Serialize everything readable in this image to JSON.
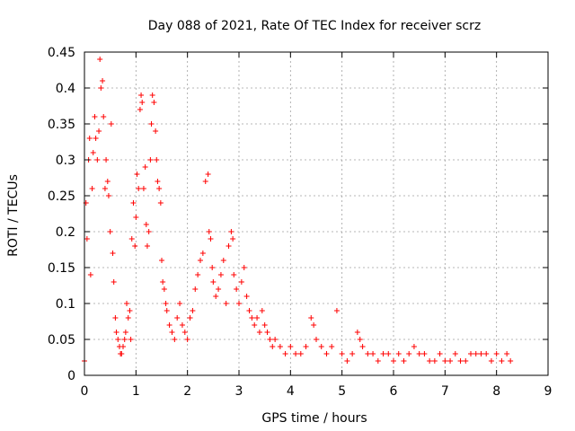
{
  "chart_data": {
    "type": "scatter",
    "title": "Day 088 of 2021, Rate Of TEC Index for receiver scrz",
    "xlabel": "GPS time / hours",
    "ylabel": "ROTI / TECUs",
    "xlim": [
      0,
      9
    ],
    "ylim": [
      0,
      0.45
    ],
    "xticks": [
      "0",
      "1",
      "2",
      "3",
      "4",
      "5",
      "6",
      "7",
      "8",
      "9"
    ],
    "yticks": [
      "0",
      "0.05",
      "0.1",
      "0.15",
      "0.2",
      "0.25",
      "0.3",
      "0.35",
      "0.4",
      "0.45"
    ],
    "grid": true,
    "marker": "+",
    "color": "#ff0000",
    "series": [
      {
        "name": "ROTI",
        "x": [
          0.0,
          0.03,
          0.05,
          0.08,
          0.1,
          0.12,
          0.15,
          0.17,
          0.2,
          0.22,
          0.25,
          0.28,
          0.3,
          0.32,
          0.35,
          0.37,
          0.4,
          0.42,
          0.45,
          0.47,
          0.5,
          0.52,
          0.55,
          0.57,
          0.6,
          0.62,
          0.65,
          0.68,
          0.7,
          0.72,
          0.75,
          0.78,
          0.8,
          0.82,
          0.85,
          0.88,
          0.9,
          0.92,
          0.95,
          0.98,
          1.0,
          1.02,
          1.05,
          1.08,
          1.1,
          1.12,
          1.15,
          1.18,
          1.2,
          1.22,
          1.25,
          1.28,
          1.3,
          1.32,
          1.35,
          1.38,
          1.4,
          1.42,
          1.45,
          1.48,
          1.5,
          1.52,
          1.55,
          1.58,
          1.6,
          1.65,
          1.7,
          1.75,
          1.8,
          1.85,
          1.9,
          1.95,
          2.0,
          2.05,
          2.1,
          2.15,
          2.2,
          2.25,
          2.3,
          2.35,
          2.4,
          2.42,
          2.45,
          2.48,
          2.5,
          2.55,
          2.6,
          2.65,
          2.7,
          2.75,
          2.8,
          2.85,
          2.88,
          2.9,
          2.95,
          3.0,
          3.05,
          3.1,
          3.15,
          3.2,
          3.25,
          3.3,
          3.35,
          3.4,
          3.45,
          3.5,
          3.55,
          3.6,
          3.65,
          3.7,
          3.8,
          3.9,
          4.0,
          4.1,
          4.2,
          4.3,
          4.4,
          4.45,
          4.5,
          4.6,
          4.7,
          4.8,
          4.9,
          5.0,
          5.1,
          5.2,
          5.3,
          5.35,
          5.4,
          5.5,
          5.6,
          5.7,
          5.8,
          5.9,
          6.0,
          6.1,
          6.2,
          6.3,
          6.4,
          6.5,
          6.6,
          6.7,
          6.8,
          6.9,
          7.0,
          7.1,
          7.2,
          7.3,
          7.4,
          7.5,
          7.6,
          7.7,
          7.8,
          7.9,
          8.0,
          8.1,
          8.2,
          8.27
        ],
        "y": [
          0.02,
          0.24,
          0.19,
          0.3,
          0.33,
          0.14,
          0.26,
          0.31,
          0.36,
          0.33,
          0.3,
          0.34,
          0.44,
          0.4,
          0.41,
          0.36,
          0.26,
          0.3,
          0.27,
          0.25,
          0.2,
          0.35,
          0.17,
          0.13,
          0.08,
          0.06,
          0.05,
          0.04,
          0.03,
          0.03,
          0.04,
          0.05,
          0.06,
          0.1,
          0.08,
          0.09,
          0.05,
          0.19,
          0.24,
          0.18,
          0.22,
          0.28,
          0.26,
          0.37,
          0.39,
          0.38,
          0.26,
          0.29,
          0.21,
          0.18,
          0.2,
          0.3,
          0.35,
          0.39,
          0.38,
          0.34,
          0.3,
          0.27,
          0.26,
          0.24,
          0.16,
          0.13,
          0.12,
          0.1,
          0.09,
          0.07,
          0.06,
          0.05,
          0.08,
          0.1,
          0.07,
          0.06,
          0.05,
          0.08,
          0.09,
          0.12,
          0.14,
          0.16,
          0.17,
          0.27,
          0.28,
          0.2,
          0.19,
          0.15,
          0.13,
          0.11,
          0.12,
          0.14,
          0.16,
          0.1,
          0.18,
          0.2,
          0.19,
          0.14,
          0.12,
          0.1,
          0.13,
          0.15,
          0.11,
          0.09,
          0.08,
          0.07,
          0.08,
          0.06,
          0.09,
          0.07,
          0.06,
          0.05,
          0.04,
          0.05,
          0.04,
          0.03,
          0.04,
          0.03,
          0.03,
          0.04,
          0.08,
          0.07,
          0.05,
          0.04,
          0.03,
          0.04,
          0.09,
          0.03,
          0.02,
          0.03,
          0.06,
          0.05,
          0.04,
          0.03,
          0.03,
          0.02,
          0.03,
          0.03,
          0.02,
          0.03,
          0.02,
          0.03,
          0.04,
          0.03,
          0.03,
          0.02,
          0.02,
          0.03,
          0.02,
          0.02,
          0.03,
          0.02,
          0.02,
          0.03,
          0.03,
          0.03,
          0.03,
          0.02,
          0.03,
          0.02,
          0.03,
          0.02
        ]
      }
    ]
  }
}
